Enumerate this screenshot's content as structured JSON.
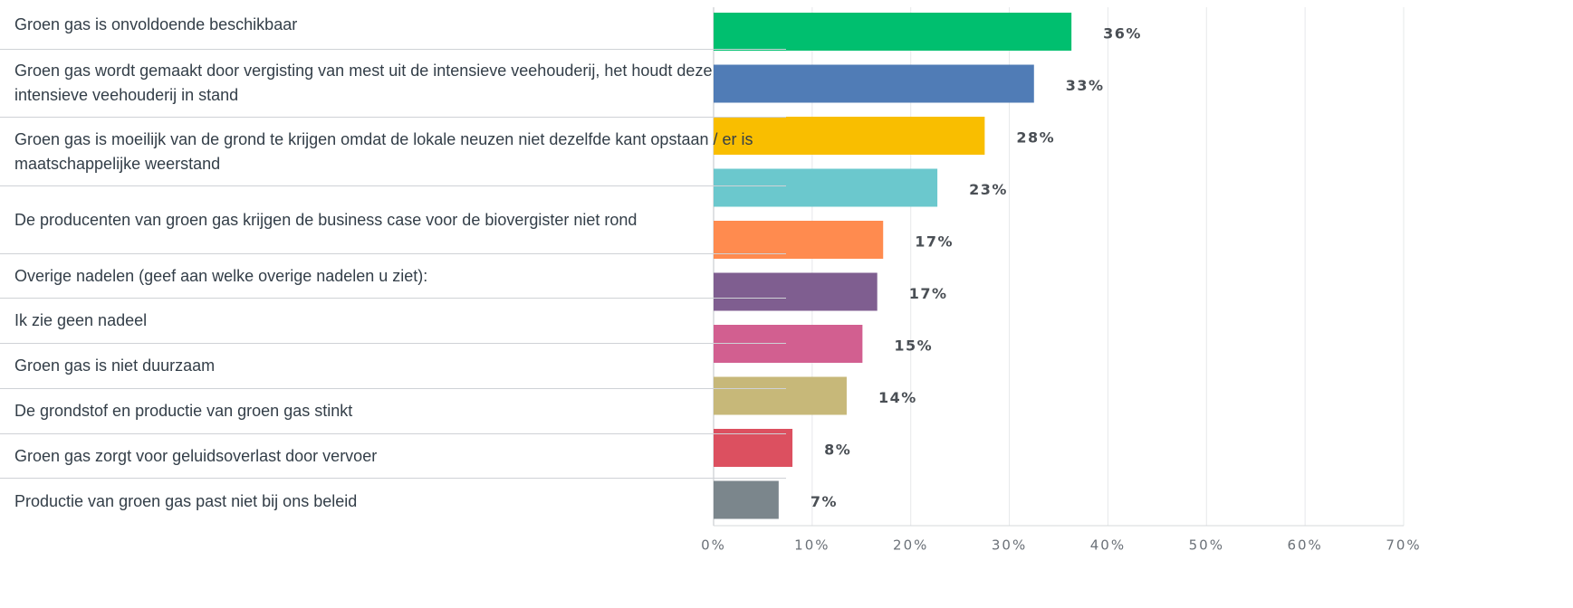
{
  "chart_data": {
    "type": "bar",
    "orientation": "horizontal",
    "categories": [
      "Groen gas is onvoldoende beschikbaar",
      "Groen gas wordt gemaakt door vergisting van mest uit de intensieve veehouderij, het houdt deze intensieve veehouderij in stand",
      "Groen gas is moeilijk van de grond te krijgen omdat de lokale neuzen niet dezelfde kant opstaan / er is maatschappelijke weerstand",
      "De producenten van groen gas krijgen de business case voor de biovergister niet rond",
      "Overige nadelen (geef aan welke overige nadelen u ziet):",
      "Ik zie geen nadeel",
      "Groen gas is niet duurzaam",
      "De grondstof en productie van groen gas stinkt",
      "Groen gas zorgt voor geluidsoverlast door vervoer",
      "Productie van groen gas past niet bij ons beleid"
    ],
    "values": [
      36.3,
      32.5,
      27.5,
      22.7,
      17.2,
      16.6,
      15.1,
      13.5,
      8.0,
      6.6
    ],
    "value_labels": [
      "36%",
      "33%",
      "28%",
      "23%",
      "17%",
      "17%",
      "15%",
      "14%",
      "8%",
      "7%"
    ],
    "colors": [
      "#00bf6f",
      "#507cb6",
      "#f9be00",
      "#6bc8cd",
      "#ff8b4f",
      "#7f5e90",
      "#d25f90",
      "#c7b879",
      "#dc5060",
      "#7b868c"
    ],
    "xlim": [
      0,
      70
    ],
    "xticks": [
      {
        "value": 0,
        "label": "0%"
      },
      {
        "value": 10,
        "label": "10%"
      },
      {
        "value": 20,
        "label": "20%"
      },
      {
        "value": 30,
        "label": "30%"
      },
      {
        "value": 40,
        "label": "40%"
      },
      {
        "value": 50,
        "label": "50%"
      },
      {
        "value": 60,
        "label": "60%"
      },
      {
        "value": 70,
        "label": "70%"
      }
    ],
    "grid": true
  }
}
